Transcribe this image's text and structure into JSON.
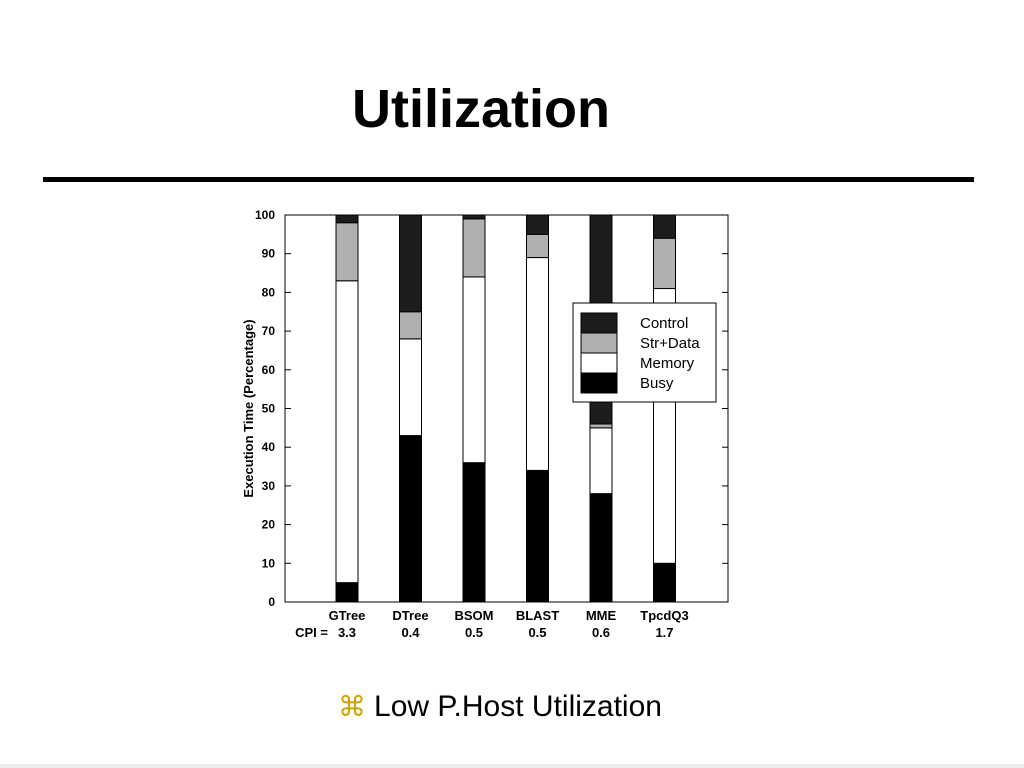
{
  "slide": {
    "title": "Utilization",
    "bullet_icon": "⌘",
    "bullet_text": "Low P.Host Utilization"
  },
  "chart_data": {
    "type": "bar",
    "stacked": true,
    "ylabel": "Execution Time (Percentage)",
    "ylim": [
      0,
      100
    ],
    "yticks": [
      0,
      10,
      20,
      30,
      40,
      50,
      60,
      70,
      80,
      90,
      100
    ],
    "categories": [
      "GTree",
      "DTree",
      "BSOM",
      "BLAST",
      "MME",
      "TpcdQ3"
    ],
    "cpi_prefix": "CPI =",
    "cpi": [
      "3.3",
      "0.4",
      "0.5",
      "0.5",
      "0.6",
      "1.7"
    ],
    "series": [
      {
        "name": "Busy",
        "color": "#000000",
        "values": [
          5,
          43,
          36,
          34,
          28,
          10
        ]
      },
      {
        "name": "Memory",
        "color": "#ffffff",
        "values": [
          78,
          25,
          48,
          55,
          17,
          71
        ]
      },
      {
        "name": "Str+Data",
        "color": "#b0b0b0",
        "values": [
          15,
          7,
          15,
          6,
          1,
          13
        ]
      },
      {
        "name": "Control",
        "color": "#1c1c1c",
        "values": [
          2,
          25,
          1,
          5,
          54,
          6
        ]
      }
    ],
    "legend_order": [
      "Control",
      "Str+Data",
      "Memory",
      "Busy"
    ],
    "legend_position": "right"
  }
}
